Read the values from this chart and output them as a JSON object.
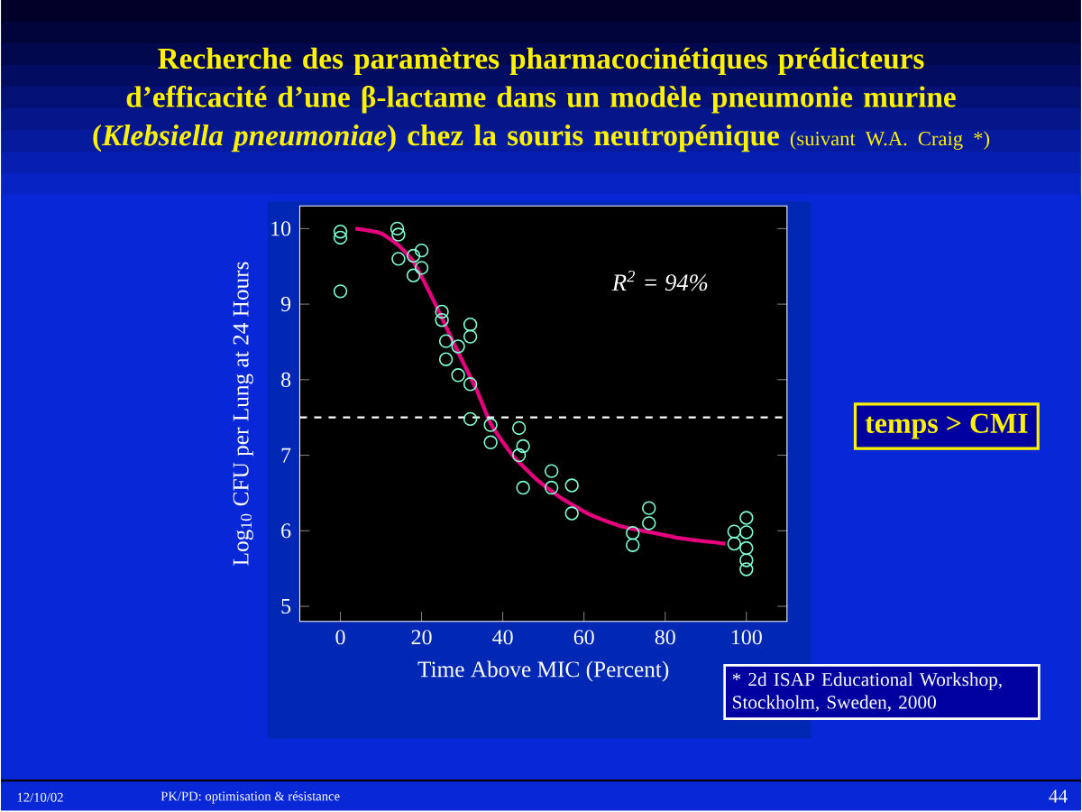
{
  "chart_data": {
    "type": "scatter",
    "title": "Recherche des paramètres pharmacocinétiques prédicteurs d’efficacité d’une β-lactame dans un modèle pneumonie murine (*Klebsiella pneumoniae*) chez la souris neutropénique",
    "subtitle": "(suivant W.A. Craig *)",
    "xlabel": "Time Above MIC (Percent)",
    "ylabel": "Log$_{10}$ CFU per Lung at 24 Hours",
    "series": [
      {
        "marker": "circle",
        "color": "#7fffd4",
        "x": [
          0,
          0,
          0,
          14,
          14.3,
          14.3,
          18,
          20,
          20,
          18,
          25,
          25,
          26,
          26,
          29,
          29,
          32,
          32,
          32,
          32,
          37,
          37,
          44,
          45,
          44,
          45,
          52,
          52,
          57,
          57,
          72,
          72,
          76,
          76,
          97,
          97,
          100,
          100,
          100,
          100,
          100
        ],
        "values": [
          9.96,
          9.88,
          9.17,
          10.0,
          9.92,
          9.6,
          9.64,
          9.71,
          9.48,
          9.38,
          8.9,
          8.79,
          8.51,
          8.27,
          8.44,
          8.06,
          8.73,
          8.57,
          7.94,
          7.48,
          7.4,
          7.17,
          7.36,
          7.12,
          7.0,
          6.57,
          6.79,
          6.57,
          6.6,
          6.23,
          5.97,
          5.81,
          6.3,
          6.1,
          5.99,
          5.83,
          6.17,
          5.98,
          5.77,
          5.61,
          5.49
        ]
      },
      {
        "type": "line",
        "color": "#e6007e",
        "x": [
          3.7,
          9.9,
          14.3,
          18,
          23.2,
          29.1,
          33.5,
          37.2,
          42.4,
          48.3,
          54.2,
          61.6,
          69,
          76.4,
          83.8,
          94.8
        ],
        "values": [
          10.0,
          9.94,
          9.78,
          9.56,
          9.02,
          8.35,
          7.87,
          7.4,
          7.0,
          6.68,
          6.44,
          6.21,
          6.06,
          5.98,
          5.9,
          5.83
        ]
      }
    ],
    "xlim": [
      -10,
      110
    ],
    "ylim": [
      4.8,
      10.3
    ],
    "xticks": [
      0,
      20,
      40,
      60,
      80,
      100
    ],
    "yticks": [
      5,
      6,
      7,
      8,
      9,
      10
    ],
    "ref_lines": [
      {
        "axis": "y",
        "value": 7.5,
        "color": "#ffffff",
        "line_style": "dashed"
      }
    ],
    "grid": false,
    "annotations": [
      "R$^{2}$ = 94%",
      "temps > CMI",
      "* 2d ISAP Educational Workshop, Stockholm, Sweden, 2000",
      "12/10/02",
      "PK/PD: optimisation & résistance",
      "44"
    ]
  }
}
